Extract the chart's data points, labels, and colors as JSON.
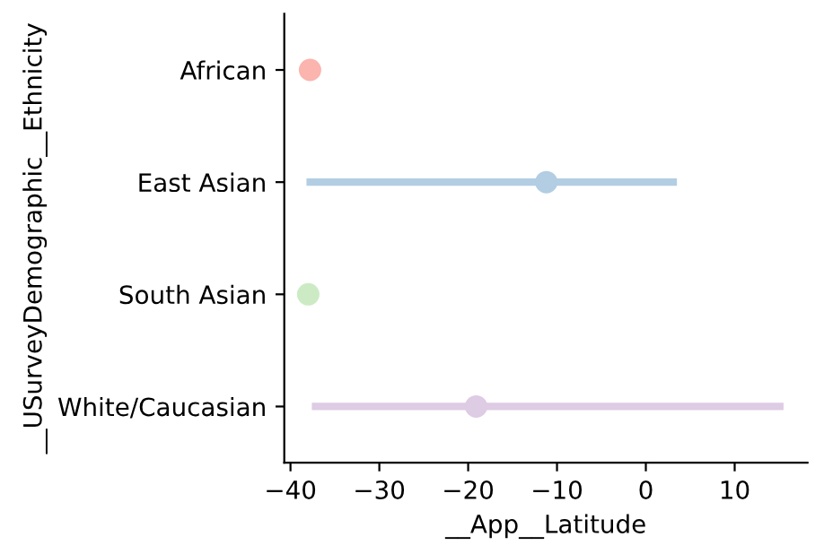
{
  "chart_data": {
    "type": "scatter",
    "orientation": "horizontal",
    "xlabel": "__App__Latitude",
    "ylabel": "__USurveyDemographic__Ethnicity",
    "categories": [
      "African",
      "East Asian",
      "South Asian",
      "White/Caucasian"
    ],
    "values": [
      -37.8,
      -11.2,
      -38.0,
      -19.1
    ],
    "errors": [
      null,
      [
        -38.2,
        3.5
      ],
      null,
      [
        -37.6,
        15.5
      ]
    ],
    "colors": [
      "#fbb4ae",
      "#b3cde3",
      "#ccebc5",
      "#decbe4"
    ],
    "marker": "circle",
    "xlim": [
      -40.7,
      18.2
    ],
    "xticks": [
      {
        "value": -40,
        "label": "−40"
      },
      {
        "value": -30,
        "label": "−30"
      },
      {
        "value": -20,
        "label": "−20"
      },
      {
        "value": -10,
        "label": "−10"
      },
      0,
      10
    ],
    "grid": false
  }
}
